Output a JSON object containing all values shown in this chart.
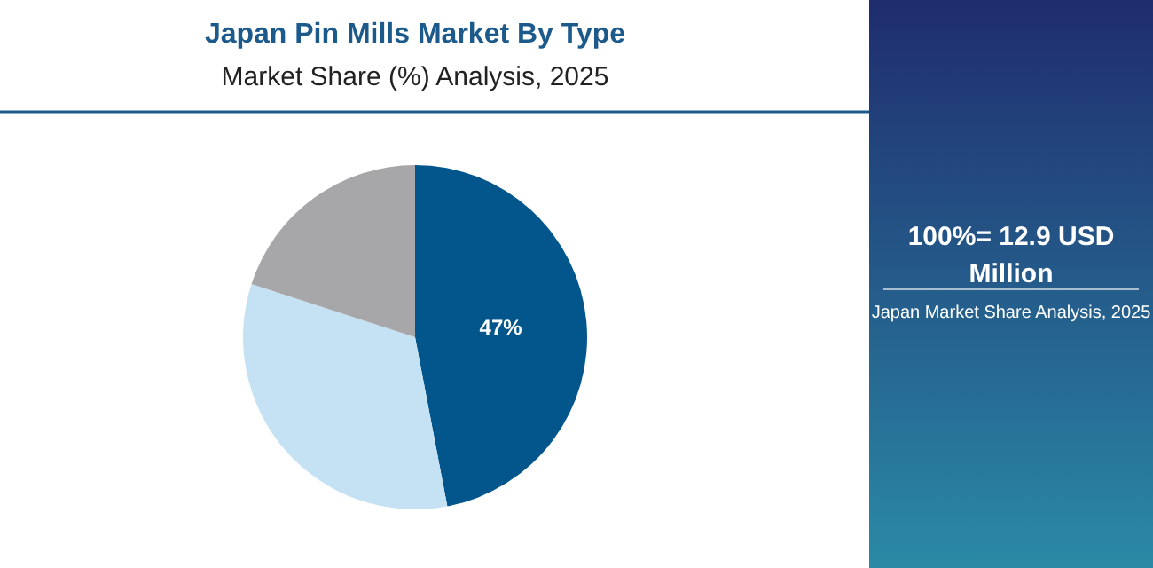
{
  "chart_data": {
    "type": "pie",
    "title": "Japan Pin Mills Market By Type",
    "subtitle": "Market Share (%) Analysis, 2025",
    "categories": [
      null,
      null,
      null
    ],
    "values": [
      47,
      33,
      20
    ],
    "colors": [
      "#02568c",
      "#c5e2f4",
      "#a7a6a9"
    ],
    "value_labels": [
      "47%",
      null,
      null
    ],
    "annotations": [
      "100%= 12.9 USD Million",
      "Japan Market Share Analysis, 2025"
    ]
  }
}
